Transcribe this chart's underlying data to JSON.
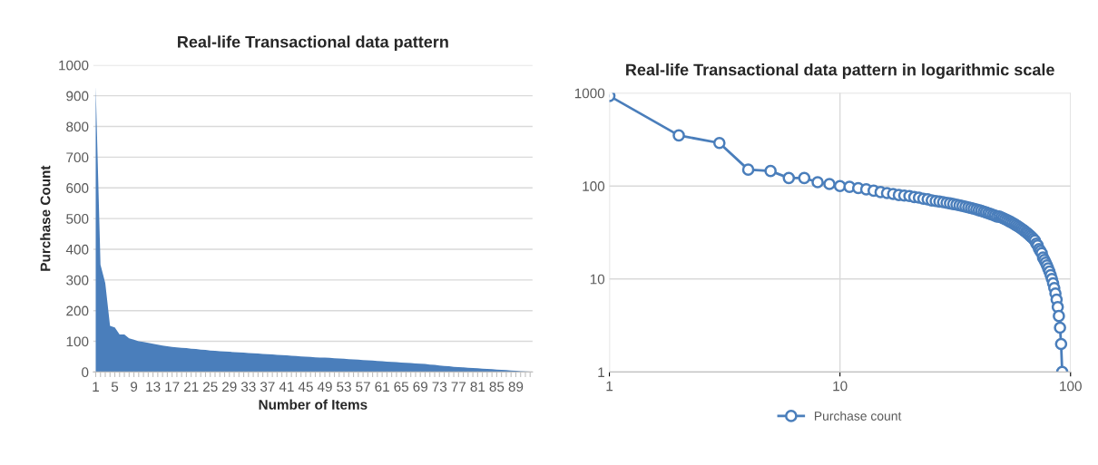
{
  "chart_data": [
    {
      "type": "area",
      "title": "Real-life Transactional data pattern",
      "xlabel": "Number of Items",
      "ylabel": "Purchase Count",
      "categories": [
        "1",
        null,
        null,
        null,
        "5",
        null,
        null,
        null,
        "9",
        null,
        null,
        null,
        "13",
        null,
        null,
        null,
        "17",
        null,
        null,
        null,
        "21",
        null,
        null,
        null,
        "25",
        null,
        null,
        null,
        "29",
        null,
        null,
        null,
        "33",
        null,
        null,
        null,
        "37",
        null,
        null,
        null,
        "41",
        null,
        null,
        null,
        "45",
        null,
        null,
        null,
        "49",
        null,
        null,
        null,
        "53",
        null,
        null,
        null,
        "57",
        null,
        null,
        null,
        "61",
        null,
        null,
        null,
        "65",
        null,
        null,
        null,
        "69",
        null,
        null,
        null,
        "73",
        null,
        null,
        null,
        "77",
        null,
        null,
        null,
        "81",
        null,
        null,
        null,
        "85",
        null,
        null,
        null,
        "89",
        null,
        null,
        null
      ],
      "values": [
        930,
        350,
        290,
        150,
        145,
        122,
        122,
        110,
        105,
        100,
        98,
        95,
        92,
        89,
        86,
        84,
        82,
        80,
        79,
        78,
        76,
        75,
        73,
        72,
        70,
        69,
        68,
        67,
        66,
        65,
        64,
        63,
        62,
        61,
        60,
        59,
        58,
        57,
        56,
        55,
        54,
        53,
        52,
        51,
        50,
        49,
        48,
        47,
        47,
        46,
        45,
        44,
        43,
        42,
        41,
        40,
        39,
        38,
        37,
        36,
        35,
        34,
        33,
        32,
        31,
        30,
        29,
        28,
        27,
        26,
        24,
        23,
        21,
        20,
        19,
        17,
        16,
        15,
        14,
        13,
        12,
        11,
        10,
        9,
        8,
        7,
        6,
        5,
        4,
        3,
        2,
        1
      ],
      "color": "#4a7ebb",
      "ylim": [
        0,
        1000
      ],
      "yticks": [
        0,
        100,
        200,
        300,
        400,
        500,
        600,
        700,
        800,
        900,
        1000
      ],
      "grid": "y"
    },
    {
      "type": "line",
      "title": "Real-life Transactional data pattern in logarithmic scale",
      "log": "xy",
      "marker": "circle",
      "legend": "bottom",
      "grid": true,
      "xlim": [
        1,
        100
      ],
      "xticks": [
        1,
        10,
        100
      ],
      "ylim": [
        1,
        1000
      ],
      "yticks": [
        1,
        10,
        100,
        1000
      ],
      "series": [
        {
          "name": "Purchase count",
          "color": "#4a7ebb",
          "x": [
            1,
            2,
            3,
            4,
            5,
            6,
            7,
            8,
            9,
            10,
            11,
            12,
            13,
            14,
            15,
            16,
            17,
            18,
            19,
            20,
            21,
            22,
            23,
            24,
            25,
            26,
            27,
            28,
            29,
            30,
            31,
            32,
            33,
            34,
            35,
            36,
            37,
            38,
            39,
            40,
            41,
            42,
            43,
            44,
            45,
            46,
            47,
            48,
            49,
            50,
            51,
            52,
            53,
            54,
            55,
            56,
            57,
            58,
            59,
            60,
            61,
            62,
            63,
            64,
            65,
            66,
            67,
            68,
            69,
            70,
            71,
            72,
            73,
            74,
            75,
            76,
            77,
            78,
            79,
            80,
            81,
            82,
            83,
            84,
            85,
            86,
            87,
            88,
            89,
            90,
            91,
            92
          ],
          "values": [
            930,
            350,
            290,
            150,
            145,
            122,
            122,
            110,
            105,
            100,
            98,
            95,
            92,
            89,
            86,
            84,
            82,
            80,
            79,
            78,
            76,
            75,
            73,
            72,
            70,
            69,
            68,
            67,
            66,
            65,
            64,
            63,
            62,
            61,
            60,
            59,
            58,
            57,
            56,
            55,
            54,
            53,
            52,
            51,
            50,
            49,
            48,
            47,
            47,
            46,
            45,
            44,
            43,
            42,
            41,
            40,
            39,
            38,
            37,
            36,
            35,
            34,
            33,
            32,
            31,
            30,
            29,
            28,
            27,
            26,
            24,
            23,
            21,
            20,
            19,
            17,
            16,
            15,
            14,
            13,
            12,
            11,
            10,
            9,
            8,
            7,
            6,
            5,
            4,
            3,
            2,
            1
          ]
        }
      ]
    }
  ]
}
